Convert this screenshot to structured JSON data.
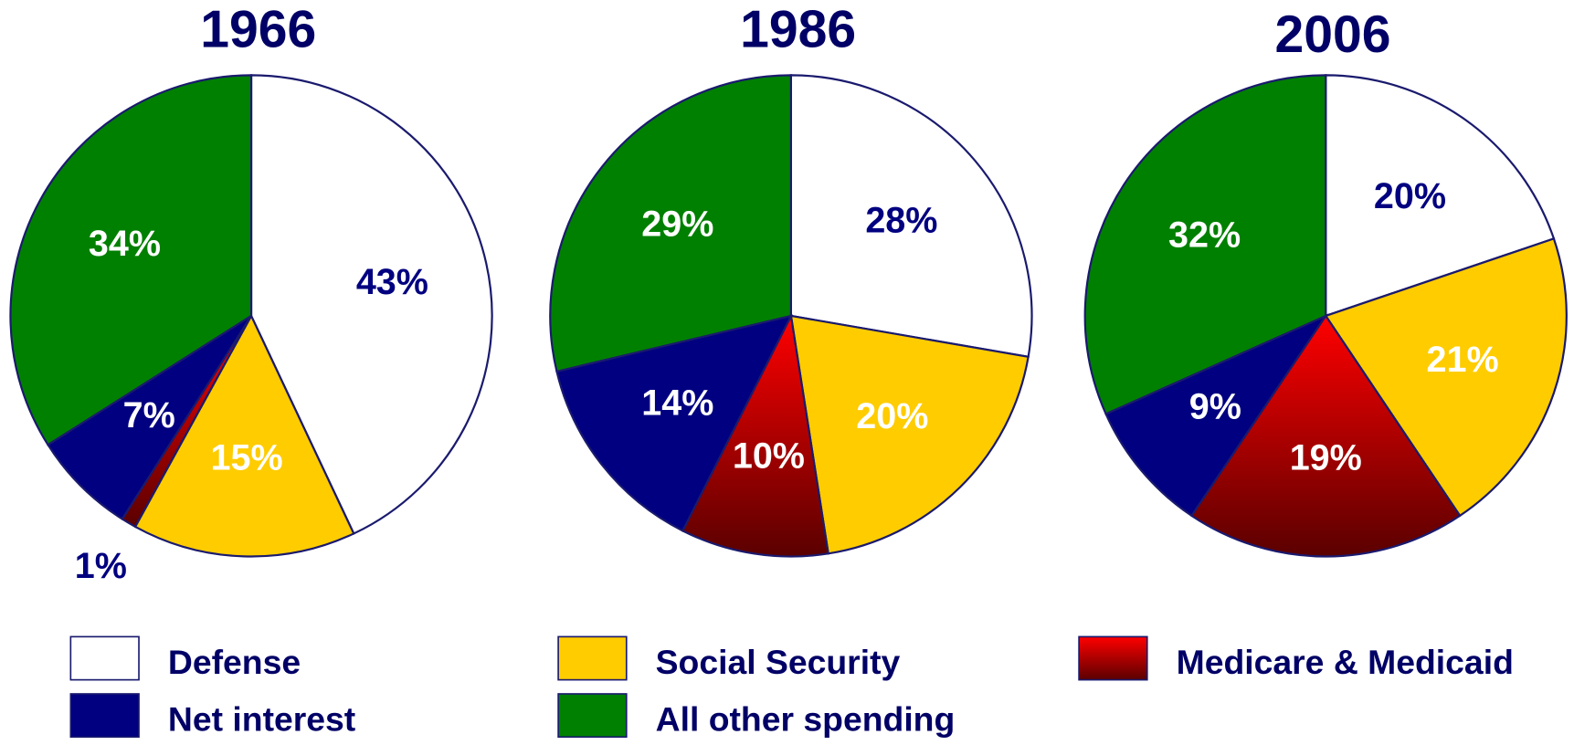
{
  "chart_data": [
    {
      "type": "pie",
      "title": "1966",
      "categories": [
        "Defense",
        "Social Security",
        "Medicare & Medicaid",
        "Net interest",
        "All other spending"
      ],
      "values": [
        43,
        15,
        1,
        7,
        34
      ],
      "value_labels": [
        "43%",
        "15%",
        "1%",
        "7%",
        "34%"
      ],
      "colors": [
        "#ffffff",
        "#ffcc00",
        "#ff0000",
        "#000080",
        "#008000"
      ],
      "gradient_end": [
        null,
        null,
        "#5a0000",
        null,
        null
      ]
    },
    {
      "type": "pie",
      "title": "1986",
      "categories": [
        "Defense",
        "Social Security",
        "Medicare & Medicaid",
        "Net interest",
        "All other spending"
      ],
      "values": [
        28,
        20,
        10,
        14,
        29
      ],
      "value_labels": [
        "28%",
        "20%",
        "10%",
        "14%",
        "29%"
      ],
      "colors": [
        "#ffffff",
        "#ffcc00",
        "#ff0000",
        "#000080",
        "#008000"
      ],
      "gradient_end": [
        null,
        null,
        "#5a0000",
        null,
        null
      ]
    },
    {
      "type": "pie",
      "title": "2006",
      "categories": [
        "Defense",
        "Social Security",
        "Medicare & Medicaid",
        "Net interest",
        "All other spending"
      ],
      "values": [
        20,
        21,
        19,
        9,
        32
      ],
      "value_labels": [
        "20%",
        "21%",
        "19%",
        "9%",
        "32%"
      ],
      "colors": [
        "#ffffff",
        "#ffcc00",
        "#ff0000",
        "#000080",
        "#008000"
      ],
      "gradient_end": [
        null,
        null,
        "#5a0000",
        null,
        null
      ]
    }
  ]
}
